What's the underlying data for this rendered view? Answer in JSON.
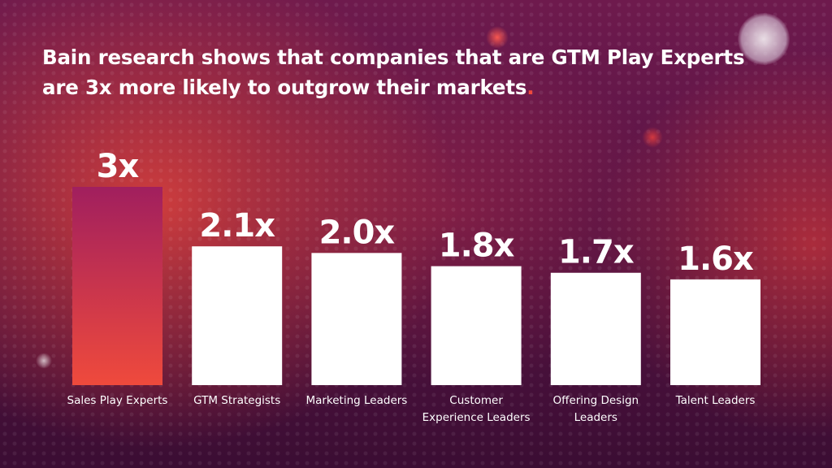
{
  "headline": {
    "text": "Bain research shows that companies that are GTM Play Experts are 3x more likely to outgrow their markets",
    "end_mark": "."
  },
  "colors": {
    "highlight_bar_top": "#a11f5e",
    "highlight_bar_bottom": "#ef4a3c",
    "bar": "#ffffff",
    "text": "#ffffff"
  },
  "chart_data": {
    "type": "bar",
    "title": "",
    "xlabel": "",
    "ylabel": "",
    "ylim": [
      0,
      3
    ],
    "grid": false,
    "legend": "none",
    "categories": [
      [
        "Sales Play Experts"
      ],
      [
        "GTM Strategists"
      ],
      [
        "Marketing Leaders"
      ],
      [
        "Customer",
        "Experience Leaders"
      ],
      [
        "Offering Design",
        "Leaders"
      ],
      [
        "Talent Leaders"
      ]
    ],
    "values": [
      3.0,
      2.1,
      2.0,
      1.8,
      1.7,
      1.6
    ],
    "value_labels": [
      "3x",
      "2.1x",
      "2.0x",
      "1.8x",
      "1.7x",
      "1.6x"
    ],
    "highlight_index": 0
  }
}
